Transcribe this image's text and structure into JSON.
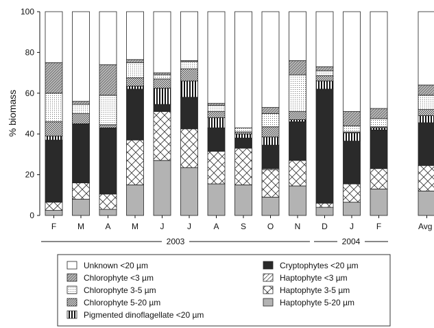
{
  "chart_data": {
    "type": "bar",
    "stacked": true,
    "ylabel": "% biomass",
    "ylim": [
      0,
      100
    ],
    "yticks": [
      0,
      20,
      40,
      60,
      80,
      100
    ],
    "categories": [
      "F",
      "M",
      "A",
      "M",
      "J",
      "J",
      "A",
      "S",
      "O",
      "N",
      "D",
      "J",
      "F",
      "Avg"
    ],
    "year_groups": [
      {
        "label": "2003",
        "from_index": 0,
        "to_index": 9
      },
      {
        "label": "2004",
        "from_index": 10,
        "to_index": 12
      }
    ],
    "series": [
      {
        "name": "Haptophyte 5-20 µm",
        "pattern": "solid-gray",
        "values": [
          2.5,
          8,
          3,
          15,
          27,
          23.5,
          15.5,
          15,
          9,
          14.5,
          4,
          6.5,
          13,
          12
        ]
      },
      {
        "name": "Haptophyte 3-5 µm",
        "pattern": "crosshatch",
        "values": [
          4,
          8,
          7.5,
          22,
          24,
          19,
          16,
          18,
          13.5,
          12.5,
          2,
          9,
          10,
          12.5
        ]
      },
      {
        "name": "Haptophyte <3 µm",
        "pattern": "light-diagonal",
        "values": [
          0,
          0,
          0,
          0,
          0,
          0,
          0,
          0,
          0.5,
          0,
          0,
          0,
          0,
          0
        ]
      },
      {
        "name": "Cryptophytes <20 µm",
        "pattern": "solid-black",
        "values": [
          30.5,
          29,
          32.5,
          25,
          3.5,
          15.5,
          11.5,
          5,
          11.5,
          19,
          56,
          21,
          19,
          21
        ]
      },
      {
        "name": "Pigmented dinoflagellate <20 µm",
        "pattern": "vertical",
        "values": [
          2,
          0,
          0,
          1.5,
          8,
          8,
          5,
          2,
          4,
          1,
          4,
          4,
          1,
          3.5
        ]
      },
      {
        "name": "Chlorophyte 5-20 µm",
        "pattern": "dense-diagonal",
        "values": [
          7,
          5,
          1.5,
          4,
          4.5,
          6,
          3,
          1,
          5,
          4,
          2.5,
          0.5,
          0.5,
          3
        ]
      },
      {
        "name": "Chlorophyte 3-5 µm",
        "pattern": "dots",
        "values": [
          14,
          4.5,
          14.5,
          7.5,
          2,
          3.5,
          3,
          2,
          6.5,
          18,
          2.5,
          3,
          4,
          7
        ]
      },
      {
        "name": "Chlorophyte <3 µm",
        "pattern": "diagonal-gray",
        "values": [
          15,
          1.5,
          15,
          1.5,
          1,
          0.5,
          1,
          0,
          3,
          7,
          2,
          7,
          5,
          5
        ]
      },
      {
        "name": "Unknown <20 µm",
        "pattern": "white",
        "values": [
          25,
          44,
          26,
          23.5,
          30,
          24,
          45,
          57,
          47,
          24,
          27,
          49,
          47.5,
          36
        ]
      }
    ],
    "legend": {
      "left": [
        "Unknown <20 µm",
        "Chlorophyte <3 µm",
        "Chlorophyte 3-5 µm",
        "Chlorophyte 5-20 µm",
        "Pigmented dinoflagellate <20 µm"
      ],
      "right": [
        "Cryptophytes <20 µm",
        "Haptophyte <3 µm",
        "Haptophyte 3-5 µm",
        "Haptophyte 5-20 µm"
      ]
    }
  }
}
